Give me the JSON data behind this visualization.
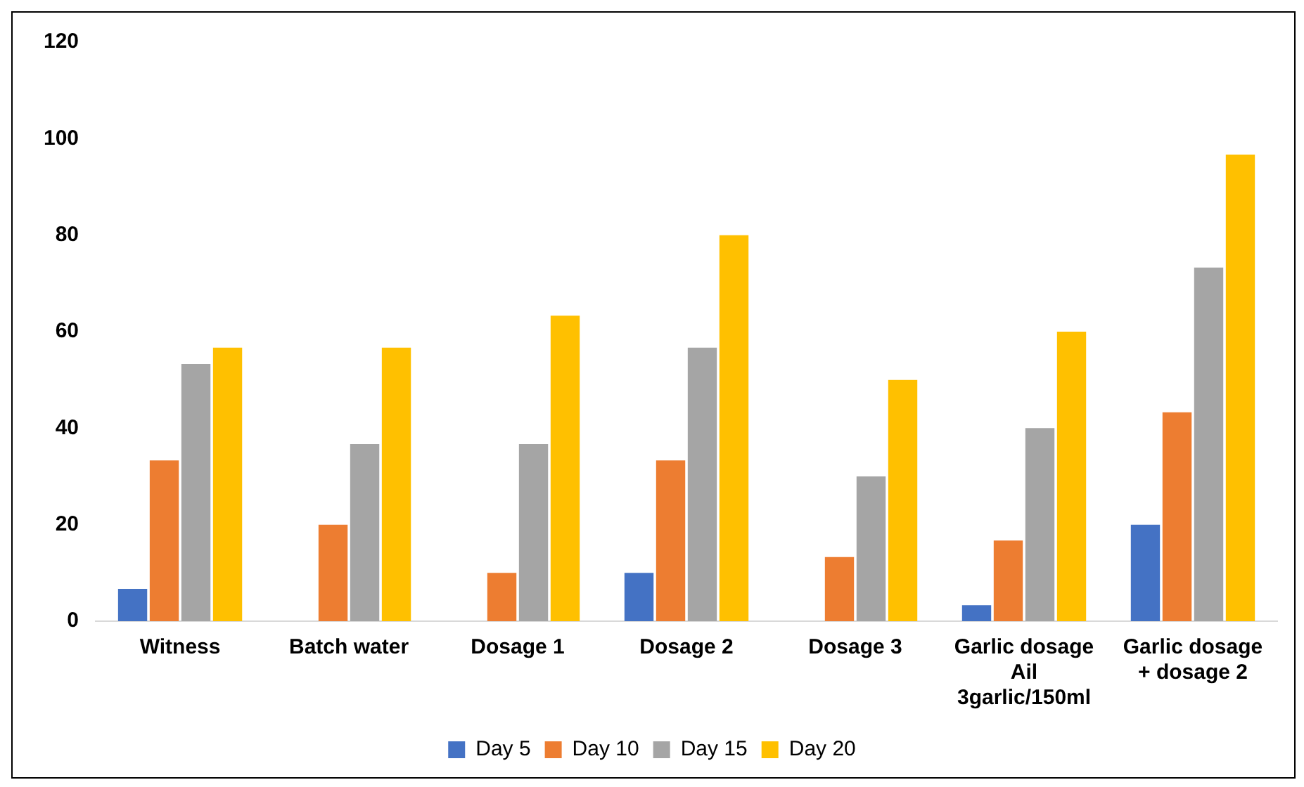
{
  "chart_data": {
    "type": "bar",
    "categories": [
      "Witness",
      "Batch water",
      "Dosage 1",
      "Dosage 2",
      "Dosage 3",
      "Garlic dosage Ail 3garlic/150ml",
      "Garlic dosage + dosage 2"
    ],
    "series": [
      {
        "name": "Day 5",
        "color": "#4472c4",
        "values": [
          6.7,
          0,
          0,
          10,
          0,
          3.3,
          20
        ]
      },
      {
        "name": "Day 10",
        "color": "#ed7d31",
        "values": [
          33.3,
          20,
          10,
          33.3,
          13.3,
          16.7,
          43.3
        ]
      },
      {
        "name": "Day 15",
        "color": "#a5a5a5",
        "values": [
          53.3,
          36.7,
          36.7,
          56.7,
          30,
          40,
          73.3
        ]
      },
      {
        "name": "Day 20",
        "color": "#ffc000",
        "values": [
          56.7,
          56.7,
          63.3,
          80,
          50,
          60,
          96.7
        ]
      }
    ],
    "ylim": [
      0,
      120
    ],
    "yticks": [
      0,
      20,
      40,
      60,
      80,
      100,
      120
    ],
    "grid": false,
    "legend": "bottom"
  }
}
